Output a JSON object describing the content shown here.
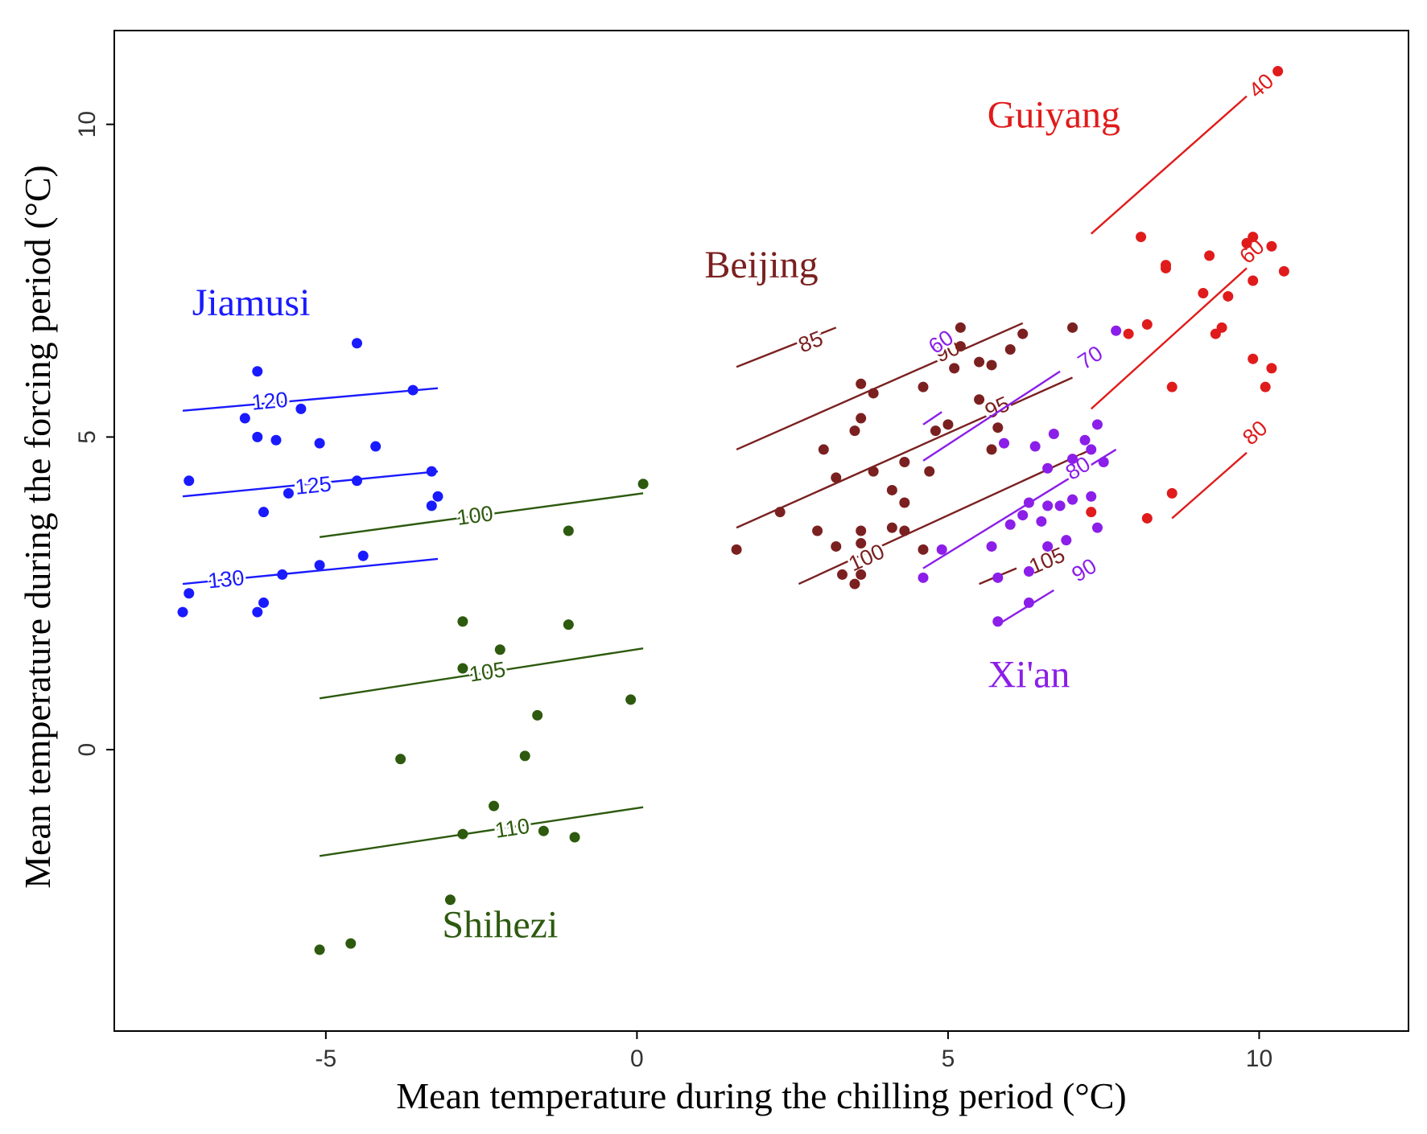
{
  "chart_data": {
    "type": "scatter",
    "xlabel": "Mean temperature during the chilling period (°C)",
    "ylabel": "Mean temperature during the forcing period (°C)",
    "xlim": [
      -8.4,
      12.4
    ],
    "ylim": [
      -4.5,
      11.5
    ],
    "xticks": [
      -5,
      0,
      5,
      10
    ],
    "yticks": [
      0,
      5,
      10
    ],
    "grid": false,
    "legend": "none",
    "series": [
      {
        "name": "Jiamusi",
        "color": "#1a1aff",
        "label_pos": [
          -6.2,
          6.95
        ],
        "points": [
          [
            -7.2,
            4.3
          ],
          [
            -6.1,
            6.05
          ],
          [
            -4.5,
            6.5
          ],
          [
            -6.3,
            5.3
          ],
          [
            -6.1,
            5.0
          ],
          [
            -5.8,
            4.95
          ],
          [
            -5.4,
            5.45
          ],
          [
            -5.1,
            4.9
          ],
          [
            -4.2,
            4.85
          ],
          [
            -3.6,
            5.75
          ],
          [
            -4.5,
            4.3
          ],
          [
            -5.6,
            4.1
          ],
          [
            -6.0,
            3.8
          ],
          [
            -3.3,
            4.45
          ],
          [
            -3.3,
            3.9
          ],
          [
            -3.2,
            4.05
          ],
          [
            -4.4,
            3.1
          ],
          [
            -5.1,
            2.95
          ],
          [
            -5.7,
            2.8
          ],
          [
            -7.3,
            2.2
          ],
          [
            -7.2,
            2.5
          ],
          [
            -6.1,
            2.2
          ],
          [
            -6.0,
            2.35
          ]
        ],
        "contours": [
          {
            "label": "120",
            "x1": -7.3,
            "y1": 5.42,
            "x2": -3.2,
            "y2": 5.78,
            "lx": -5.9,
            "ly": 5.55
          },
          {
            "label": "125",
            "x1": -7.3,
            "y1": 4.05,
            "x2": -3.2,
            "y2": 4.45,
            "lx": -5.2,
            "ly": 4.2
          },
          {
            "label": "130",
            "x1": -7.3,
            "y1": 2.65,
            "x2": -3.2,
            "y2": 3.05,
            "lx": -6.6,
            "ly": 2.7
          }
        ]
      },
      {
        "name": "Shihezi",
        "color": "#2d5a0e",
        "label_pos": [
          -2.2,
          -3.0
        ],
        "points": [
          [
            0.1,
            4.25
          ],
          [
            -1.1,
            3.5
          ],
          [
            -2.8,
            2.05
          ],
          [
            -2.2,
            1.6
          ],
          [
            -1.1,
            2.0
          ],
          [
            -2.8,
            1.3
          ],
          [
            -0.1,
            0.8
          ],
          [
            -1.6,
            0.55
          ],
          [
            -3.8,
            -0.15
          ],
          [
            -1.8,
            -0.1
          ],
          [
            -2.3,
            -0.9
          ],
          [
            -1.5,
            -1.3
          ],
          [
            -1.0,
            -1.4
          ],
          [
            -2.8,
            -1.35
          ],
          [
            -3.0,
            -2.4
          ],
          [
            -4.6,
            -3.1
          ],
          [
            -5.1,
            -3.2
          ]
        ],
        "contours": [
          {
            "label": "100",
            "x1": -5.1,
            "y1": 3.4,
            "x2": 0.1,
            "y2": 4.1,
            "lx": -2.6,
            "ly": 3.72
          },
          {
            "label": "105",
            "x1": -5.1,
            "y1": 0.82,
            "x2": 0.1,
            "y2": 1.62,
            "lx": -2.4,
            "ly": 1.22
          },
          {
            "label": "110",
            "x1": -5.1,
            "y1": -1.7,
            "x2": 0.1,
            "y2": -0.92,
            "lx": -2.0,
            "ly": -1.28
          }
        ]
      },
      {
        "name": "Beijing",
        "color": "#7b2020",
        "label_pos": [
          2.0,
          7.55
        ],
        "points": [
          [
            5.2,
            6.75
          ],
          [
            7.0,
            6.75
          ],
          [
            6.2,
            6.65
          ],
          [
            6.0,
            6.4
          ],
          [
            5.2,
            6.45
          ],
          [
            5.5,
            6.2
          ],
          [
            5.7,
            6.15
          ],
          [
            5.1,
            6.1
          ],
          [
            3.6,
            5.85
          ],
          [
            4.6,
            5.8
          ],
          [
            3.8,
            5.7
          ],
          [
            5.5,
            5.6
          ],
          [
            3.6,
            5.3
          ],
          [
            3.5,
            5.1
          ],
          [
            5.0,
            5.2
          ],
          [
            4.8,
            5.1
          ],
          [
            5.8,
            5.15
          ],
          [
            5.7,
            4.8
          ],
          [
            3.0,
            4.8
          ],
          [
            4.3,
            4.6
          ],
          [
            3.2,
            4.35
          ],
          [
            3.8,
            4.45
          ],
          [
            4.7,
            4.45
          ],
          [
            4.1,
            4.15
          ],
          [
            4.3,
            3.95
          ],
          [
            2.3,
            3.8
          ],
          [
            2.9,
            3.5
          ],
          [
            3.6,
            3.5
          ],
          [
            4.1,
            3.55
          ],
          [
            4.3,
            3.5
          ],
          [
            3.2,
            3.25
          ],
          [
            3.6,
            3.3
          ],
          [
            4.6,
            3.2
          ],
          [
            1.6,
            3.2
          ],
          [
            3.3,
            2.8
          ],
          [
            3.6,
            2.8
          ],
          [
            3.5,
            2.65
          ]
        ],
        "contours": [
          {
            "label": "85",
            "x1": 1.6,
            "y1": 6.12,
            "x2": 3.2,
            "y2": 6.75,
            "lx": 2.8,
            "ly": 6.5
          },
          {
            "label": "90",
            "x1": 1.6,
            "y1": 4.8,
            "x2": 6.2,
            "y2": 6.82,
            "lx": 5.0,
            "ly": 6.35
          },
          {
            "label": "95",
            "x1": 1.6,
            "y1": 3.55,
            "x2": 7.0,
            "y2": 5.95,
            "lx": 5.8,
            "ly": 5.45
          },
          {
            "label": "100",
            "x1": 2.6,
            "y1": 2.65,
            "x2": 7.3,
            "y2": 4.8,
            "lx": 3.7,
            "ly": 3.05
          },
          {
            "label": "105",
            "x1": 5.5,
            "y1": 2.65,
            "x2": 6.1,
            "y2": 2.9,
            "lx": 6.6,
            "ly": 3.0
          }
        ]
      },
      {
        "name": "Xi'an",
        "color": "#8b1ee8",
        "label_pos": [
          6.3,
          1.0
        ],
        "points": [
          [
            7.7,
            6.7
          ],
          [
            7.4,
            5.2
          ],
          [
            6.7,
            5.05
          ],
          [
            7.2,
            4.95
          ],
          [
            7.3,
            4.8
          ],
          [
            7.0,
            4.65
          ],
          [
            7.5,
            4.6
          ],
          [
            6.6,
            4.5
          ],
          [
            5.9,
            4.9
          ],
          [
            6.4,
            4.85
          ],
          [
            7.3,
            4.05
          ],
          [
            6.3,
            3.95
          ],
          [
            6.6,
            3.9
          ],
          [
            6.8,
            3.9
          ],
          [
            7.0,
            4.0
          ],
          [
            6.2,
            3.75
          ],
          [
            6.0,
            3.6
          ],
          [
            6.5,
            3.65
          ],
          [
            7.4,
            3.55
          ],
          [
            4.9,
            3.2
          ],
          [
            5.7,
            3.25
          ],
          [
            6.6,
            3.25
          ],
          [
            6.9,
            3.35
          ],
          [
            4.6,
            2.75
          ],
          [
            5.8,
            2.75
          ],
          [
            6.3,
            2.85
          ],
          [
            6.3,
            2.35
          ],
          [
            5.8,
            2.05
          ]
        ],
        "contours": [
          {
            "label": "60",
            "x1": 4.6,
            "y1": 5.2,
            "x2": 4.9,
            "y2": 5.4,
            "lx": 4.9,
            "ly": 6.5
          },
          {
            "label": "70",
            "x1": 4.6,
            "y1": 4.62,
            "x2": 6.8,
            "y2": 6.05,
            "lx": 7.3,
            "ly": 6.25
          },
          {
            "label": "80",
            "x1": 4.6,
            "y1": 2.9,
            "x2": 7.7,
            "y2": 4.8,
            "lx": 7.1,
            "ly": 4.48
          },
          {
            "label": "90",
            "x1": 5.8,
            "y1": 2.0,
            "x2": 6.7,
            "y2": 2.55,
            "lx": 7.2,
            "ly": 2.85
          }
        ]
      },
      {
        "name": "Guiyang",
        "color": "#e01b1b",
        "label_pos": [
          6.7,
          9.95
        ],
        "points": [
          [
            10.3,
            10.85
          ],
          [
            8.1,
            8.2
          ],
          [
            9.9,
            8.2
          ],
          [
            9.8,
            8.1
          ],
          [
            10.2,
            8.05
          ],
          [
            9.2,
            7.9
          ],
          [
            8.5,
            7.75
          ],
          [
            8.5,
            7.7
          ],
          [
            10.4,
            7.65
          ],
          [
            9.9,
            7.5
          ],
          [
            9.1,
            7.3
          ],
          [
            9.5,
            7.25
          ],
          [
            8.2,
            6.8
          ],
          [
            9.4,
            6.75
          ],
          [
            9.3,
            6.65
          ],
          [
            7.9,
            6.65
          ],
          [
            9.9,
            6.25
          ],
          [
            10.2,
            6.1
          ],
          [
            8.6,
            5.8
          ],
          [
            10.1,
            5.8
          ],
          [
            8.6,
            4.1
          ],
          [
            7.3,
            3.8
          ],
          [
            8.2,
            3.7
          ]
        ],
        "contours": [
          {
            "label": "40",
            "x1": 7.3,
            "y1": 8.25,
            "x2": 9.8,
            "y2": 10.45,
            "lx": 10.05,
            "ly": 10.6
          },
          {
            "label": "60",
            "x1": 7.3,
            "y1": 5.45,
            "x2": 9.8,
            "y2": 7.7,
            "lx": 9.9,
            "ly": 7.95
          },
          {
            "label": "80",
            "x1": 8.6,
            "y1": 3.7,
            "x2": 9.8,
            "y2": 4.75,
            "lx": 9.95,
            "ly": 5.05
          }
        ]
      }
    ]
  }
}
